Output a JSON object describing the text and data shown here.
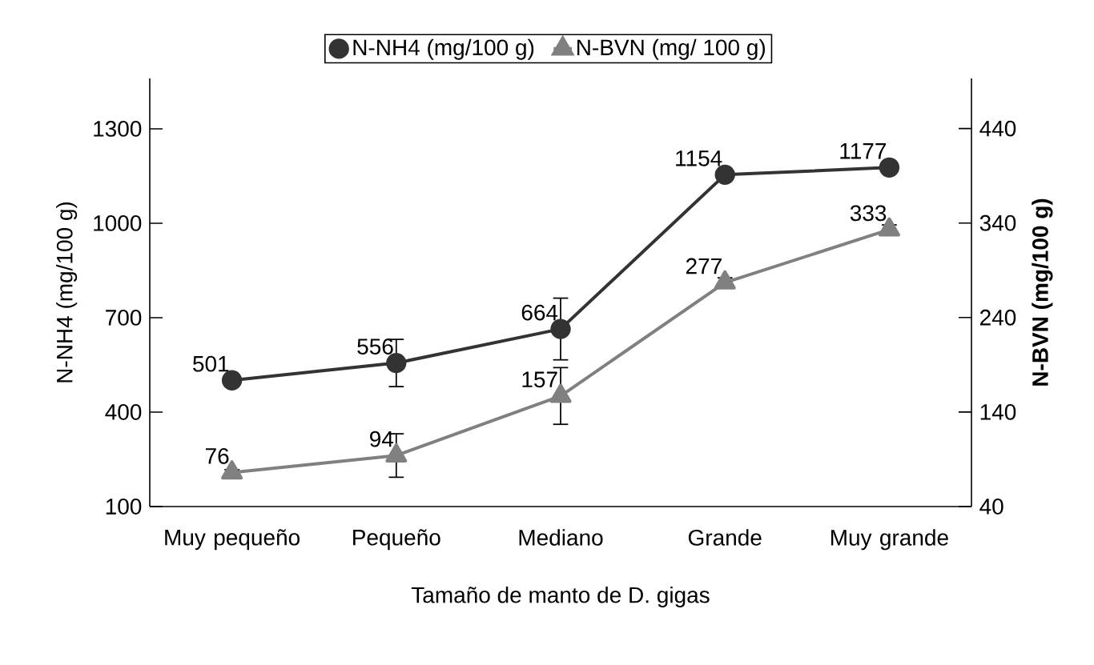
{
  "chart_data": {
    "type": "line",
    "xlabel": "Tamaño de manto de D. gigas",
    "ylabel": "N-NH4 (mg/100 g)",
    "y2label": "N-BVN (mg/100 g)",
    "categories": [
      "Muy pequeño",
      "Pequeño",
      "Mediano",
      "Grande",
      "Muy grande"
    ],
    "ylim": [
      100,
      1460
    ],
    "yticks": [
      100,
      400,
      700,
      1000,
      1300
    ],
    "y2lim": [
      40,
      493
    ],
    "y2ticks": [
      40,
      140,
      240,
      340,
      440
    ],
    "data_labels": true,
    "legend": "top",
    "series": [
      {
        "name": "N-NH4 (mg/100 g)",
        "color": "#333333",
        "marker": "circle",
        "values": [
          501,
          556,
          664,
          1154,
          1177
        ],
        "errors": [
          0,
          75,
          98,
          12,
          0
        ]
      },
      {
        "name": "N-BVN (mg/ 100 g)",
        "color": "#808080",
        "marker": "triangle",
        "axis": "y2",
        "values": [
          76,
          94,
          157,
          277,
          333
        ],
        "errors": [
          3,
          23,
          30,
          5,
          5
        ]
      }
    ]
  }
}
